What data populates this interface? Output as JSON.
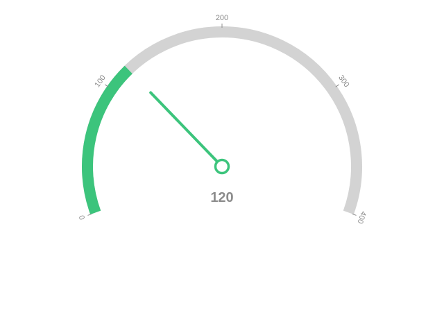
{
  "chart_data": {
    "type": "gauge",
    "min": 0,
    "max": 400,
    "value": 120,
    "value_label": "120",
    "ticks": [
      {
        "value": 0,
        "label": "0"
      },
      {
        "value": 100,
        "label": "100"
      },
      {
        "value": 200,
        "label": "200"
      },
      {
        "value": 300,
        "label": "300"
      },
      {
        "value": 400,
        "label": "400"
      }
    ],
    "start_angle_deg": -110,
    "end_angle_deg": 110,
    "colors": {
      "progress": "#3cc47c",
      "track": "#d3d3d3",
      "text": "#8c8c8c",
      "tick": "#8c8c8c"
    }
  }
}
